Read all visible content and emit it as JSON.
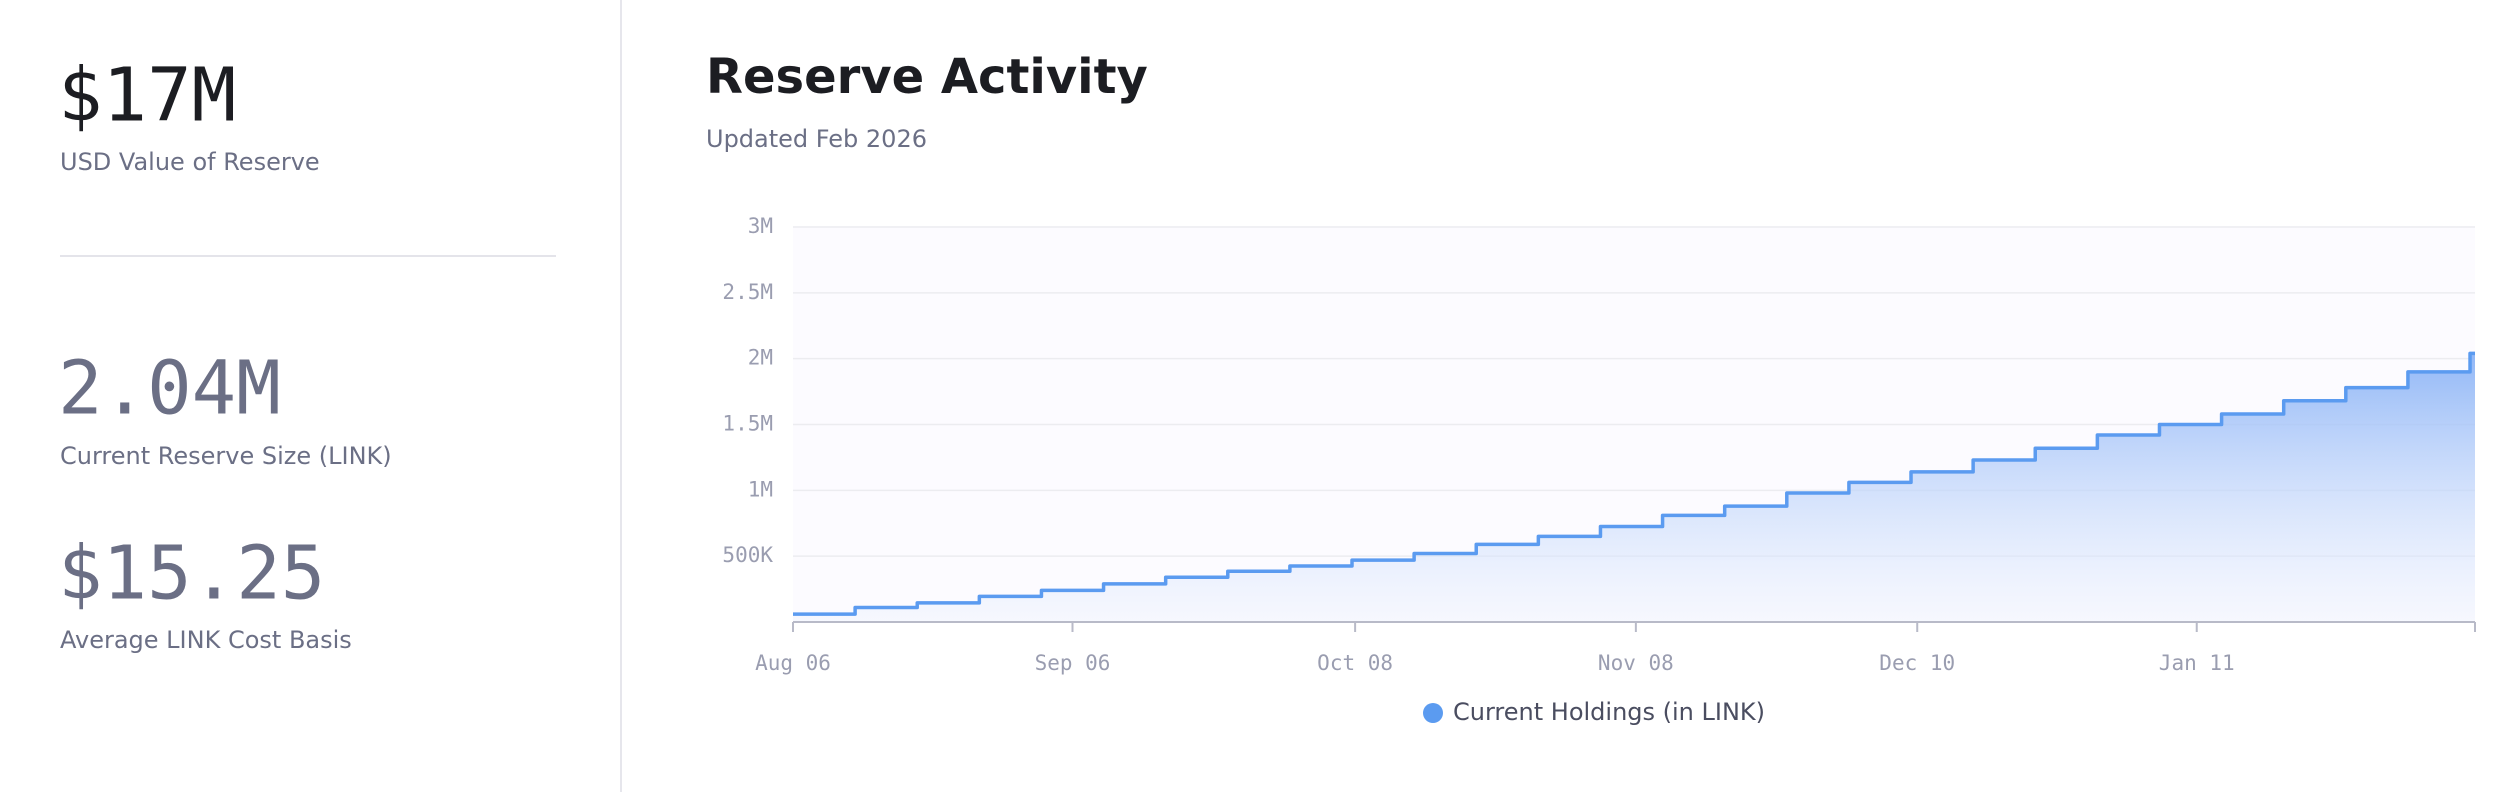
{
  "stats": [
    {
      "value": "$17M",
      "label": "USD Value of Reserve"
    },
    {
      "value": "2.04M",
      "label": "Current Reserve Size (LINK)"
    },
    {
      "value": "$15.25",
      "label": "Average LINK Cost Basis"
    }
  ],
  "chart_data": {
    "type": "step-area",
    "title": "Reserve Activity",
    "subtitle": "Updated Feb 2026",
    "categories": [
      null,
      null,
      null,
      null,
      null,
      null,
      null,
      null,
      null,
      null,
      null,
      null,
      null,
      null,
      null,
      null,
      null,
      null,
      null,
      null,
      null,
      null,
      null,
      null,
      null,
      null,
      null,
      null
    ],
    "series": [
      {
        "name": "Current Holdings (in LINK)",
        "color": "#5b9bf0",
        "values": [
          60000,
          110000,
          145000,
          195000,
          240000,
          290000,
          340000,
          385000,
          425000,
          470000,
          520000,
          590000,
          650000,
          725000,
          810000,
          880000,
          980000,
          1060000,
          1140000,
          1230000,
          1320000,
          1420000,
          1500000,
          1580000,
          1680000,
          1780000,
          1900000,
          2040000
        ]
      }
    ],
    "xticks": [
      {
        "value": 0,
        "label": "Aug 06"
      },
      {
        "value": 4.5,
        "label": "Sep 06"
      },
      {
        "value": 9.05,
        "label": "Oct 08"
      },
      {
        "value": 13.57,
        "label": "Nov 08"
      },
      {
        "value": 18.1,
        "label": "Dec 10"
      },
      {
        "value": 22.6,
        "label": "Jan 11"
      }
    ],
    "ylim": [
      0,
      3000000
    ],
    "yticks": [
      {
        "value": 500000,
        "label": "500K"
      },
      {
        "value": 1000000,
        "label": "1M"
      },
      {
        "value": 1500000,
        "label": "1.5M"
      },
      {
        "value": 2000000,
        "label": "2M"
      },
      {
        "value": 2500000,
        "label": "2.5M"
      },
      {
        "value": 3000000,
        "label": "3M"
      }
    ],
    "grid": true
  }
}
